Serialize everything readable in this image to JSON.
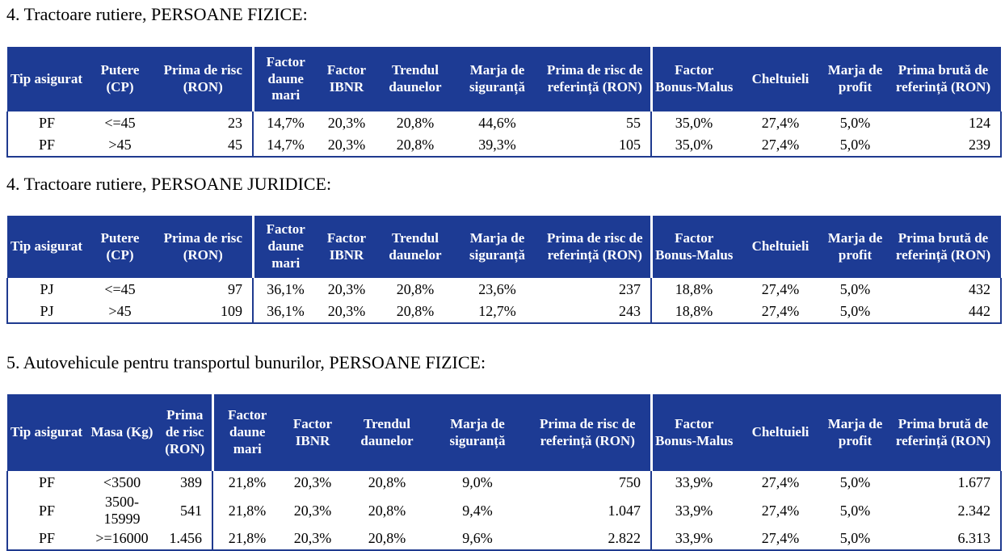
{
  "colors": {
    "header_bg": "#1d3b94",
    "header_text": "#ffffff",
    "border": "#1f3a8f",
    "body_text": "#000000",
    "page_bg": "#ffffff"
  },
  "sections": [
    {
      "title": "4. Tractoare rutiere, PERSOANE FIZICE:",
      "columns": [
        "Tip asigurat",
        "Putere (CP)",
        "Prima de risc (RON)",
        "Factor daune mari",
        "Factor IBNR",
        "Trendul daunelor",
        "Marja de siguranță",
        "Prima de risc de referință (RON)",
        "Factor Bonus-Malus",
        "Cheltuieli",
        "Marja de profit",
        "Prima brută de referință (RON)"
      ],
      "rows": [
        [
          "PF",
          "<=45",
          "23",
          "14,7%",
          "20,3%",
          "20,8%",
          "44,6%",
          "55",
          "35,0%",
          "27,4%",
          "5,0%",
          "124"
        ],
        [
          "PF",
          ">45",
          "45",
          "14,7%",
          "20,3%",
          "20,8%",
          "39,3%",
          "105",
          "35,0%",
          "27,4%",
          "5,0%",
          "239"
        ]
      ]
    },
    {
      "title": "4. Tractoare rutiere, PERSOANE JURIDICE:",
      "columns": [
        "Tip asigurat",
        "Putere (CP)",
        "Prima de risc (RON)",
        "Factor daune mari",
        "Factor IBNR",
        "Trendul daunelor",
        "Marja de siguranță",
        "Prima de risc de referință (RON)",
        "Factor Bonus-Malus",
        "Cheltuieli",
        "Marja de profit",
        "Prima brută de referință (RON)"
      ],
      "rows": [
        [
          "PJ",
          "<=45",
          "97",
          "36,1%",
          "20,3%",
          "20,8%",
          "23,6%",
          "237",
          "18,8%",
          "27,4%",
          "5,0%",
          "432"
        ],
        [
          "PJ",
          ">45",
          "109",
          "36,1%",
          "20,3%",
          "20,8%",
          "12,7%",
          "243",
          "18,8%",
          "27,4%",
          "5,0%",
          "442"
        ]
      ]
    },
    {
      "title": "5. Autovehicule pentru transportul bunurilor, PERSOANE FIZICE:",
      "columns": [
        "Tip asigurat",
        "Masa (Kg)",
        "Prima de risc (RON)",
        "Factor daune mari",
        "Factor IBNR",
        "Trendul daunelor",
        "Marja de siguranță",
        "Prima de risc de referință (RON)",
        "Factor Bonus-Malus",
        "Cheltuieli",
        "Marja de profit",
        "Prima brută de referință (RON)"
      ],
      "rows": [
        [
          "PF",
          "<3500",
          "389",
          "21,8%",
          "20,3%",
          "20,8%",
          "9,0%",
          "750",
          "33,9%",
          "27,4%",
          "5,0%",
          "1.677"
        ],
        [
          "PF",
          "3500-15999",
          "541",
          "21,8%",
          "20,3%",
          "20,8%",
          "9,4%",
          "1.047",
          "33,9%",
          "27,4%",
          "5,0%",
          "2.342"
        ],
        [
          "PF",
          ">=16000",
          "1.456",
          "21,8%",
          "20,3%",
          "20,8%",
          "9,6%",
          "2.822",
          "33,9%",
          "27,4%",
          "5,0%",
          "6.313"
        ]
      ]
    }
  ]
}
